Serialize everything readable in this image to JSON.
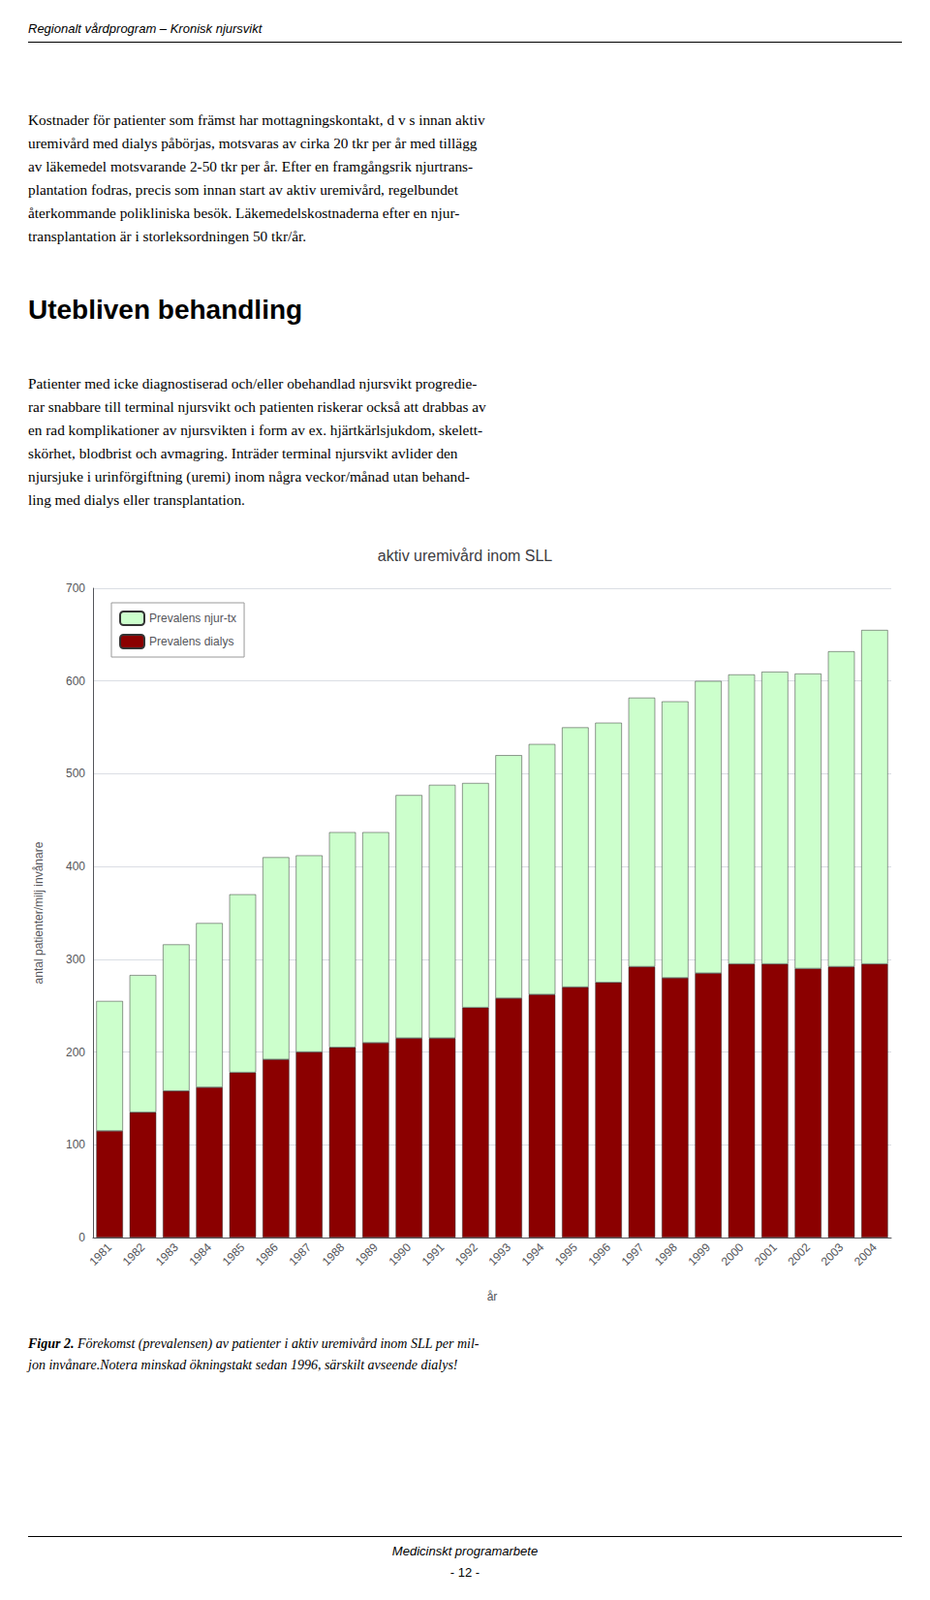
{
  "page_header": "Regionalt vårdprogram – Kronisk njursvikt",
  "page_footer_italic": "Medicinskt programarbete",
  "page_footer": "- 12 -",
  "main_text_1_lines": [
    "Kostnader för patienter som främst har mottagningskontakt, d v s innan aktiv",
    "uremivård med dialys påbörjas, motsvaras av cirka 20 tkr per år med tillägg",
    "av läkemedel motsvarande 2-50 tkr per år. Efter en framgångsrik njurtrans-",
    "plantation fodras, precis som innan start av aktiv uremivård, regelbundet",
    "återkommande polikliniska besök. Läkemedelskostnaderna efter en njur-",
    "transplantation är i storleksordningen 50 tkr/år."
  ],
  "section_title": "Utebliven behandling",
  "main_text_2_lines": [
    "Patienter med icke diagnostiserad och/eller obehandlad njursvikt progredie-",
    "rar snabbare till terminal njursvikt och patienten riskerar också att drabbas av",
    "en rad komplikationer av njursvikten i form av ex. hjärtkärlsjukdom, skelett-",
    "skörhet, blodbrist och avmagring. Inträder terminal njursvikt avlider den",
    "njursjuke i urinförgiftning (uremi) inom några veckor/månad utan behand-",
    "ling med dialys eller transplantation."
  ],
  "caption_bold": "Figur 2.",
  "caption_lines": [
    " Förekomst (prevalensen) av patienter i aktiv uremivård inom SLL per mil-",
    "jon invånare.Notera minskad ökningstakt sedan 1996, särskilt avseende dialys!"
  ],
  "chart_data": {
    "type": "bar",
    "title": "aktiv uremivård inom SLL",
    "xlabel": "år",
    "ylabel": "antal patienter/milj invånare",
    "categories": [
      "1981",
      "1982",
      "1983",
      "1984",
      "1985",
      "1986",
      "1987",
      "1988",
      "1989",
      "1990",
      "1991",
      "1992",
      "1993",
      "1994",
      "1995",
      "1996",
      "1997",
      "1998",
      "1999",
      "2000",
      "2001",
      "2002",
      "2003",
      "2004"
    ],
    "series": [
      {
        "name": "Prevalens dialys",
        "color": "#8B0000",
        "values": [
          115,
          135,
          158,
          162,
          178,
          192,
          200,
          205,
          210,
          215,
          215,
          248,
          258,
          262,
          270,
          275,
          292,
          280,
          285,
          295,
          295,
          290,
          292,
          295
        ]
      },
      {
        "name": "Prevalens njur-tx",
        "color": "#CCFFCC",
        "values": [
          140,
          148,
          158,
          177,
          192,
          218,
          212,
          232,
          227,
          262,
          273,
          242,
          262,
          270,
          280,
          280,
          290,
          298,
          315,
          312,
          315,
          318,
          340,
          360
        ]
      }
    ],
    "stacked": true,
    "ylim": [
      0,
      700
    ],
    "yticks": [
      0,
      100,
      200,
      300,
      400,
      500,
      600,
      700
    ],
    "grid": true,
    "legend": "upper left"
  }
}
